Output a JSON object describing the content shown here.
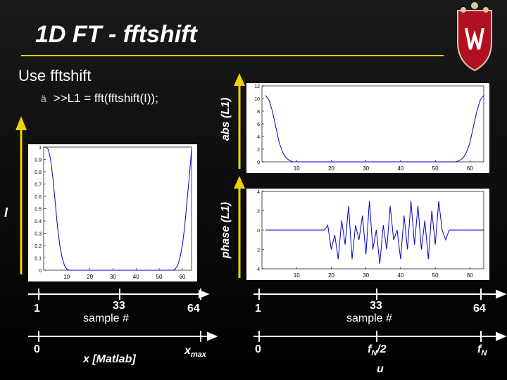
{
  "slide": {
    "title": "1D FT - fftshift",
    "heading": "Use fftshift",
    "bullet_symbol": "ä",
    "bullet_text": ">>L1 = fft(fftshift(I));",
    "left_axis_label": "I",
    "abs_label": "abs (L1)",
    "phase_label": "phase (L1)",
    "colors": {
      "accent_yellow": "#f0d000",
      "background": "#000000",
      "crest_red": "#b01020",
      "plot_line": "#0000cc"
    }
  },
  "bottom_axes": {
    "left_row1": [
      "1",
      "33",
      "64"
    ],
    "left_row1_sub": "sample #",
    "left_row2_start": "0",
    "left_row2_mid": "x [Matlab]",
    "left_row2_end_base": "x",
    "left_row2_end_sub": "max",
    "right_row1": [
      "1",
      "33",
      "64"
    ],
    "right_row1_sub": "sample #",
    "right_row2_start": "0",
    "right_row2_mid_base": "f",
    "right_row2_mid_sub": "N",
    "right_row2_mid_tail": "/2",
    "right_row2_end_base": "f",
    "right_row2_end_sub": "N",
    "right_row3": "u"
  },
  "chart_data": [
    {
      "type": "line",
      "title": "",
      "xlabel": "",
      "ylabel": "",
      "x_ticks": [
        "10",
        "20",
        "30",
        "40",
        "50",
        "60"
      ],
      "y_ticks": [
        "0",
        "0.1",
        "0.2",
        "0.3",
        "0.4",
        "0.5",
        "0.6",
        "0.7",
        "0.8",
        "0.9",
        "1"
      ],
      "xlim": [
        0,
        64
      ],
      "ylim": [
        0,
        1
      ],
      "series": [
        {
          "shape": "bathtub",
          "edge_width": 7,
          "x": [
            1,
            2,
            3,
            4,
            5,
            6,
            7,
            8,
            9,
            10,
            11,
            12,
            55,
            56,
            57,
            58,
            59,
            60,
            61,
            62,
            63,
            64
          ],
          "values": [
            1,
            0.98,
            0.9,
            0.75,
            0.55,
            0.35,
            0.2,
            0.1,
            0.04,
            0.01,
            0,
            0,
            0,
            0,
            0.01,
            0.04,
            0.1,
            0.2,
            0.35,
            0.55,
            0.75,
            0.98
          ]
        }
      ]
    },
    {
      "type": "line",
      "title": "",
      "xlabel": "",
      "ylabel": "",
      "x_ticks": [
        "10",
        "20",
        "30",
        "40",
        "50",
        "60"
      ],
      "y_ticks": [
        "0",
        "2",
        "4",
        "6",
        "8",
        "10",
        "12"
      ],
      "xlim": [
        0,
        64
      ],
      "ylim": [
        0,
        12
      ],
      "series": [
        {
          "x": [
            1,
            2,
            3,
            4,
            5,
            6,
            7,
            8,
            9,
            10,
            55,
            56,
            57,
            58,
            59,
            60,
            61,
            62,
            63,
            64
          ],
          "values": [
            10.5,
            9.8,
            8,
            5.5,
            3,
            1.5,
            0.6,
            0.2,
            0,
            0,
            0,
            0,
            0.2,
            0.6,
            1.5,
            3,
            5.5,
            8,
            9.8,
            10.5
          ]
        }
      ]
    },
    {
      "type": "line",
      "title": "",
      "xlabel": "",
      "ylabel": "",
      "x_ticks": [
        "10",
        "20",
        "30",
        "40",
        "50",
        "60"
      ],
      "y_ticks": [
        "4",
        "2",
        "0",
        "2",
        "4"
      ],
      "xlim": [
        0,
        64
      ],
      "ylim": [
        -4,
        4
      ],
      "series": [
        {
          "x": [
            1,
            2,
            3,
            4,
            5,
            6,
            7,
            8,
            9,
            10,
            11,
            12,
            13,
            14,
            15,
            16,
            17,
            18,
            19,
            20,
            21,
            22,
            23,
            24,
            25,
            26,
            27,
            28,
            29,
            30,
            31,
            32,
            33,
            34,
            35,
            36,
            37,
            38,
            39,
            40,
            41,
            42,
            43,
            44,
            45,
            46,
            47,
            48,
            49,
            50,
            51,
            52,
            53,
            54,
            55,
            56,
            57,
            58,
            59,
            60,
            61,
            62,
            63,
            64
          ],
          "values": [
            0,
            0,
            0,
            0,
            0,
            0,
            0,
            0,
            0,
            0,
            0,
            0,
            0,
            0,
            0,
            0,
            0,
            0,
            0.5,
            -2,
            -0.5,
            -3,
            1,
            -1.5,
            2.5,
            -3,
            0.5,
            -1,
            1.5,
            -2.5,
            3,
            -2,
            0,
            -3.5,
            0.5,
            -2,
            2.5,
            -1,
            0,
            -3,
            1.5,
            -2,
            3,
            -1.5,
            2.5,
            -2,
            1,
            -3,
            2,
            -1.5,
            3,
            0,
            -1,
            0,
            0,
            0,
            0,
            0,
            0,
            0,
            0,
            0,
            0,
            0
          ]
        }
      ]
    }
  ]
}
